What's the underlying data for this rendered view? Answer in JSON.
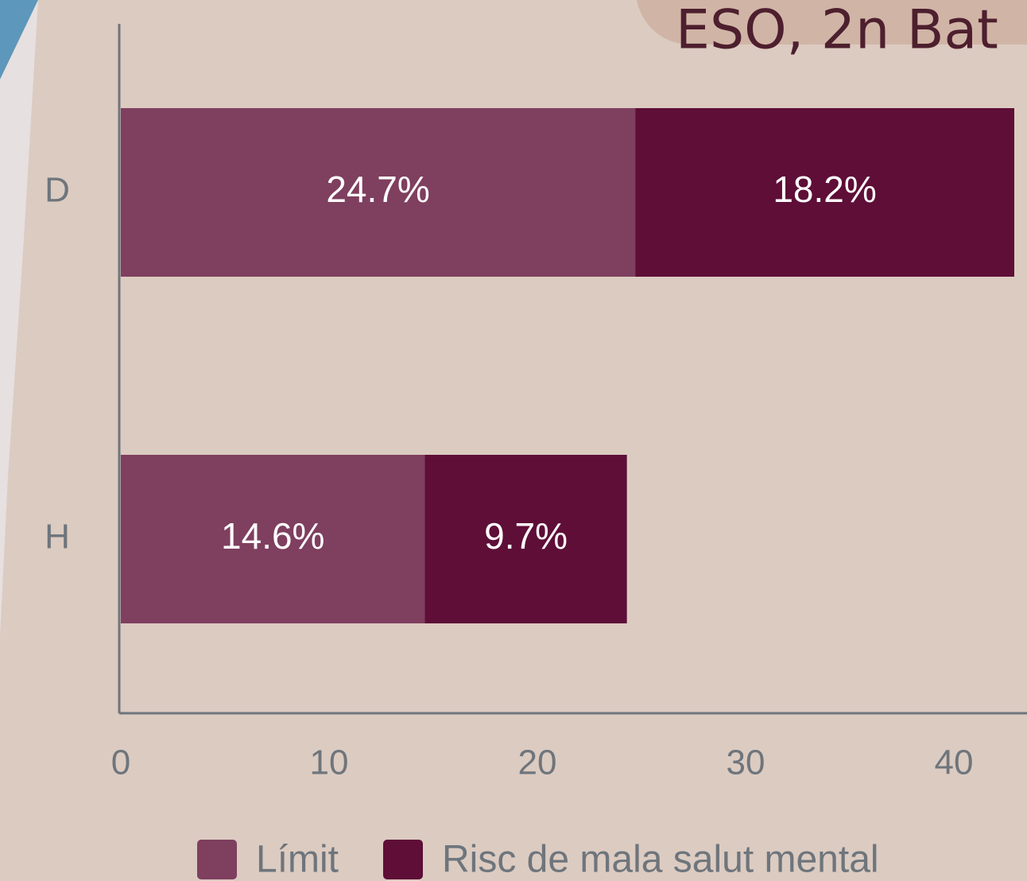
{
  "chart_data": {
    "type": "stacked-bar-horizontal",
    "title": "ESO, 2n Bat",
    "categories": [
      "D",
      "H"
    ],
    "series": [
      {
        "name": "Límit",
        "color": "#7f3f5f",
        "values": [
          24.7,
          14.6
        ],
        "value_labels": [
          "24.7%",
          "14.6%"
        ]
      },
      {
        "name": "Risc de mala salut mental",
        "color": "#5e0e37",
        "values": [
          18.2,
          9.7
        ],
        "value_labels": [
          "18.2%",
          "9.7%"
        ]
      }
    ],
    "xlim": [
      0,
      43.5
    ],
    "xticks": [
      0,
      10,
      20,
      30,
      40
    ],
    "legend": "bottom"
  }
}
